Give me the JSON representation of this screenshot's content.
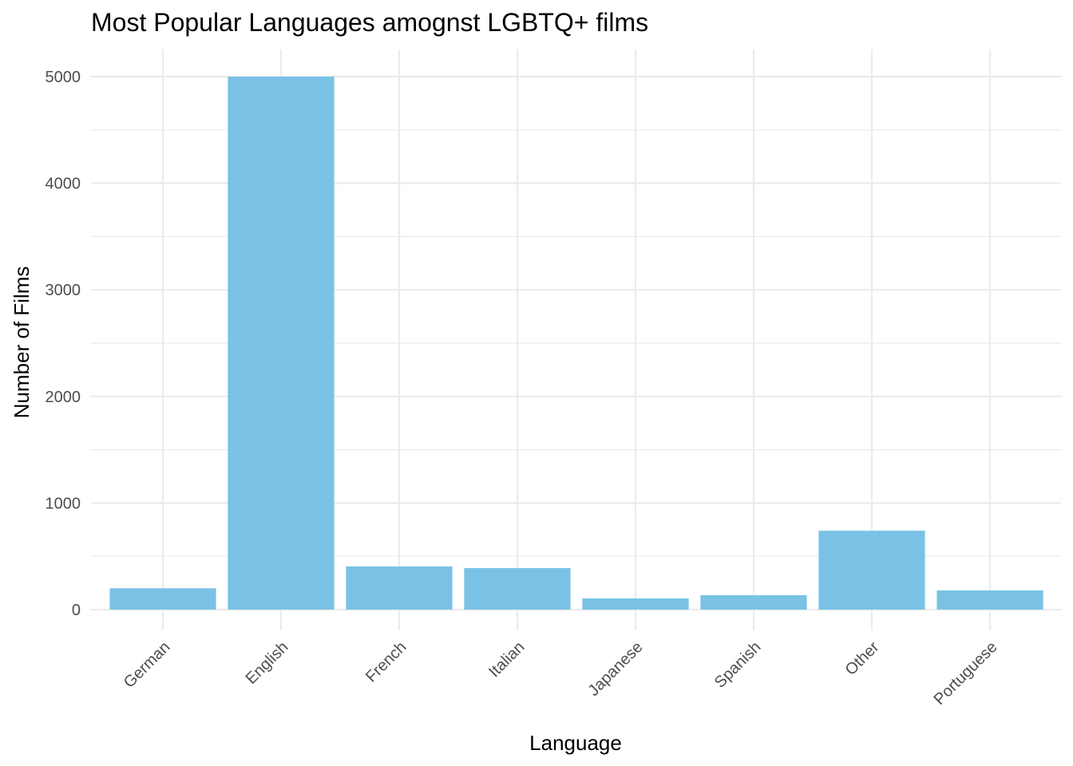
{
  "chart_data": {
    "type": "bar",
    "title": "Most Popular Languages amognst LGBTQ+ films",
    "xlabel": "Language",
    "ylabel": "Number of Films",
    "categories": [
      "German",
      "English",
      "French",
      "Italian",
      "Japanese",
      "Spanish",
      "Other",
      "Portuguese"
    ],
    "values": [
      200,
      5000,
      405,
      390,
      105,
      135,
      740,
      180
    ],
    "ylim": [
      0,
      5000
    ],
    "yticks": [
      "0",
      "1000",
      "2000",
      "3000",
      "4000",
      "5000"
    ],
    "bar_color": "#7AC2E5",
    "grid": true,
    "legend": "none"
  }
}
